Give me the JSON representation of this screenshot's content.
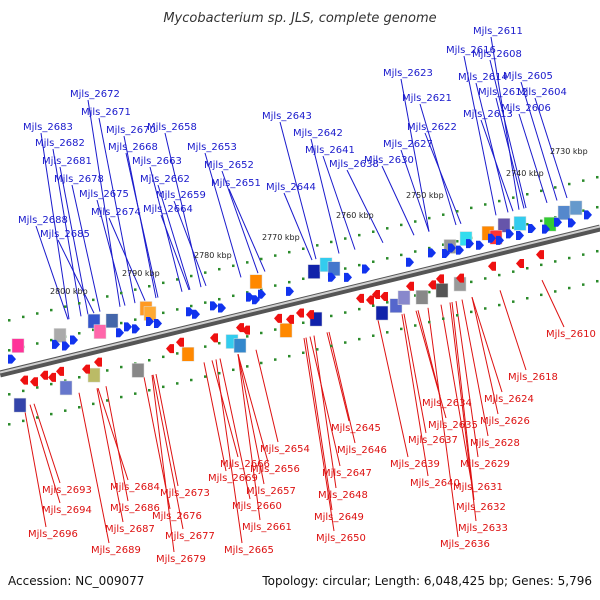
{
  "title": "Mycobacterium sp. JLS, complete genome",
  "footer": {
    "accession": "Accession: NC_009077",
    "stats": "Topology: circular; Length: 6,048,425 bp; Genes: 5,796"
  },
  "colors": {
    "forward_label": "#1a1acc",
    "reverse_label": "#dd1111",
    "forward_gene": "#1133ee",
    "reverse_gene": "#ee1111",
    "backbone": "#888888",
    "tick": "#2a8a2a"
  },
  "scale_ticks": [
    "2730 kbp",
    "2740 kbp",
    "2750 kbp",
    "2760 kbp",
    "2770 kbp",
    "2780 kbp",
    "2790 kbp",
    "2800 kbp"
  ],
  "forward_labels": [
    "Mjls_2611",
    "Mjls_2616",
    "Mjls_2608",
    "Mjls_2623",
    "Mjls_2614",
    "Mjls_2605",
    "Mjls_2612",
    "Mjls_2604",
    "Mjls_2621",
    "Mjls_2606",
    "Mjls_2613",
    "Mjls_2622",
    "Mjls_2627",
    "Mjls_2630",
    "Mjls_2643",
    "Mjls_2642",
    "Mjls_2641",
    "Mjls_2638",
    "Mjls_2644",
    "Mjls_2672",
    "Mjls_2671",
    "Mjls_2683",
    "Mjls_2670",
    "Mjls_2658",
    "Mjls_2682",
    "Mjls_2668",
    "Mjls_2653",
    "Mjls_2681",
    "Mjls_2663",
    "Mjls_2652",
    "Mjls_2678",
    "Mjls_2662",
    "Mjls_2651",
    "Mjls_2675",
    "Mjls_2659",
    "Mjls_2674",
    "Mjls_2664",
    "Mjls_2688",
    "Mjls_2685"
  ],
  "reverse_labels": [
    "Mjls_2610",
    "Mjls_2618",
    "Mjls_2624",
    "Mjls_2634",
    "Mjls_2626",
    "Mjls_2635",
    "Mjls_2637",
    "Mjls_2628",
    "Mjls_2639",
    "Mjls_2629",
    "Mjls_2640",
    "Mjls_2631",
    "Mjls_2632",
    "Mjls_2633",
    "Mjls_2636",
    "Mjls_2645",
    "Mjls_2646",
    "Mjls_2647",
    "Mjls_2648",
    "Mjls_2649",
    "Mjls_2650",
    "Mjls_2654",
    "Mjls_2666",
    "Mjls_2656",
    "Mjls_2669",
    "Mjls_2657",
    "Mjls_2660",
    "Mjls_2661",
    "Mjls_2665",
    "Mjls_2684",
    "Mjls_2673",
    "Mjls_2676",
    "Mjls_2677",
    "Mjls_2679",
    "Mjls_2693",
    "Mjls_2694",
    "Mjls_2686",
    "Mjls_2687",
    "Mjls_2689",
    "Mjls_2696"
  ]
}
